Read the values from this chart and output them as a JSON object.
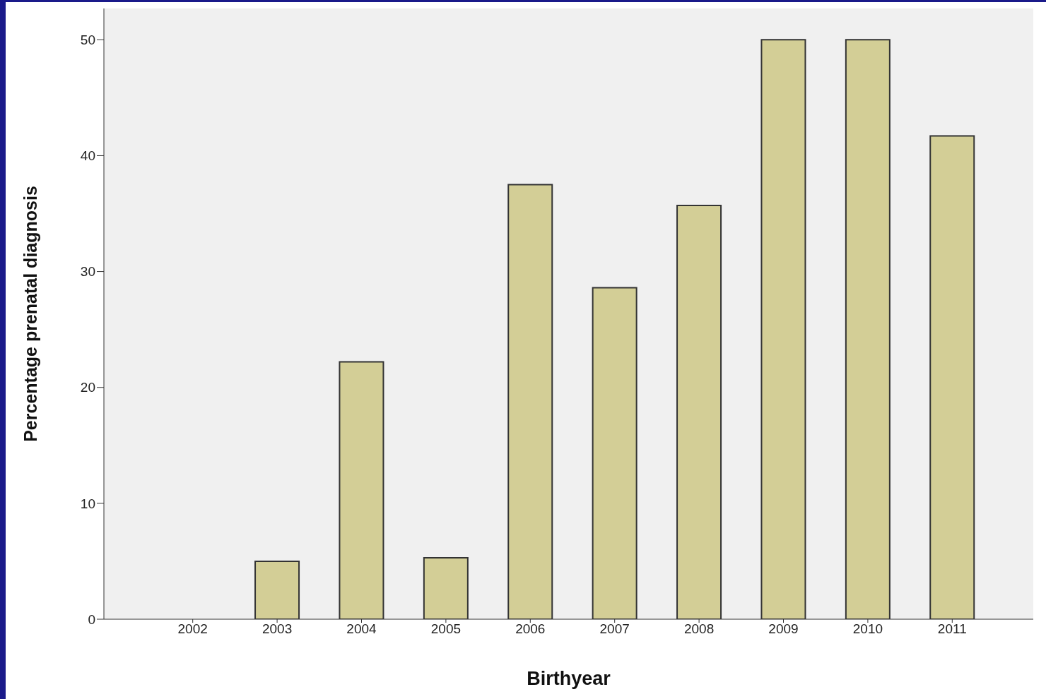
{
  "chart_data": {
    "type": "bar",
    "xlabel": "Birthyear",
    "ylabel": "Percentage prenatal diagnosis",
    "categories": [
      "2002",
      "2003",
      "2004",
      "2005",
      "2006",
      "2007",
      "2008",
      "2009",
      "2010",
      "2011"
    ],
    "values": [
      0,
      5.0,
      22.2,
      5.3,
      37.5,
      28.6,
      35.7,
      50,
      50,
      41.7
    ],
    "color": "#d3ce96",
    "ylim": [
      0,
      52.7
    ],
    "yticks": [
      0,
      10,
      20,
      30,
      40,
      50
    ],
    "grid": false
  }
}
